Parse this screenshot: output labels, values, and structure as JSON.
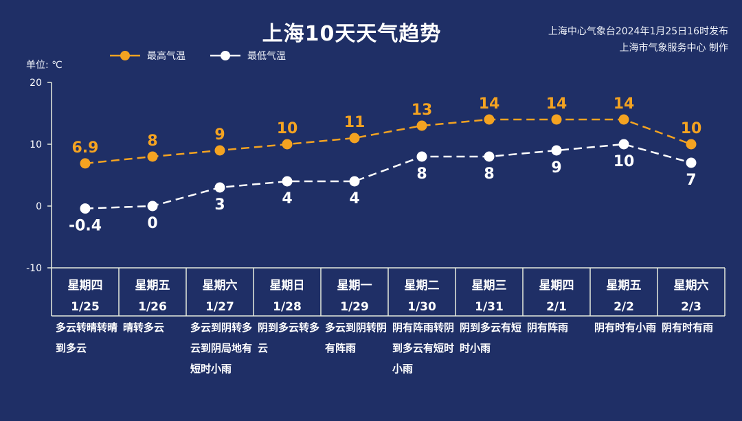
{
  "title": "上海10天天气趋势",
  "issuer": {
    "line1": "上海中心气象台2024年1月25日16时发布",
    "line2": "上海市气象服务中心 制作"
  },
  "unit_label": "单位: ℃",
  "colors": {
    "background": "#1f2f66",
    "high": "#f4a321",
    "low": "#ffffff",
    "axis": "#e6ecdd"
  },
  "chart_data": {
    "type": "line",
    "title": "上海10天天气趋势",
    "ylabel": "单位: ℃",
    "ylim": [
      -10,
      20
    ],
    "yticks": [
      -10,
      0,
      10,
      20
    ],
    "legend_position": "top-left",
    "categories": [
      "星期四 1/25",
      "星期五 1/26",
      "星期六 1/27",
      "星期日 1/28",
      "星期一 1/29",
      "星期二 1/30",
      "星期三 1/31",
      "星期四 2/1",
      "星期五 2/2",
      "星期六 2/3"
    ],
    "days": [
      {
        "weekday": "星期四",
        "date": "1/25",
        "weather": "多云转晴转晴到多云"
      },
      {
        "weekday": "星期五",
        "date": "1/26",
        "weather": "晴转多云"
      },
      {
        "weekday": "星期六",
        "date": "1/27",
        "weather": "多云到阴转多云到阴局地有短时小雨"
      },
      {
        "weekday": "星期日",
        "date": "1/28",
        "weather": "阴到多云转多云"
      },
      {
        "weekday": "星期一",
        "date": "1/29",
        "weather": "多云到阴转阴有阵雨"
      },
      {
        "weekday": "星期二",
        "date": "1/30",
        "weather": "阴有阵雨转阴到多云有短时小雨"
      },
      {
        "weekday": "星期三",
        "date": "1/31",
        "weather": "阴到多云有短时小雨"
      },
      {
        "weekday": "星期四",
        "date": "2/1",
        "weather": "阴有阵雨"
      },
      {
        "weekday": "星期五",
        "date": "2/2",
        "weather": "阴有时有小雨"
      },
      {
        "weekday": "星期六",
        "date": "2/3",
        "weather": "阴有时有雨"
      }
    ],
    "series": [
      {
        "name": "最高气温",
        "values": [
          6.9,
          8,
          9,
          10,
          11,
          13,
          14,
          14,
          14,
          10
        ],
        "labels": [
          "6.9",
          "8",
          "9",
          "10",
          "11",
          "13",
          "14",
          "14",
          "14",
          "10"
        ],
        "color": "#f4a321"
      },
      {
        "name": "最低气温",
        "values": [
          -0.4,
          0,
          3,
          4,
          4,
          8,
          8,
          9,
          10,
          7
        ],
        "labels": [
          "-0.4",
          "0",
          "3",
          "4",
          "4",
          "8",
          "8",
          "9",
          "10",
          "7"
        ],
        "color": "#ffffff"
      }
    ]
  }
}
